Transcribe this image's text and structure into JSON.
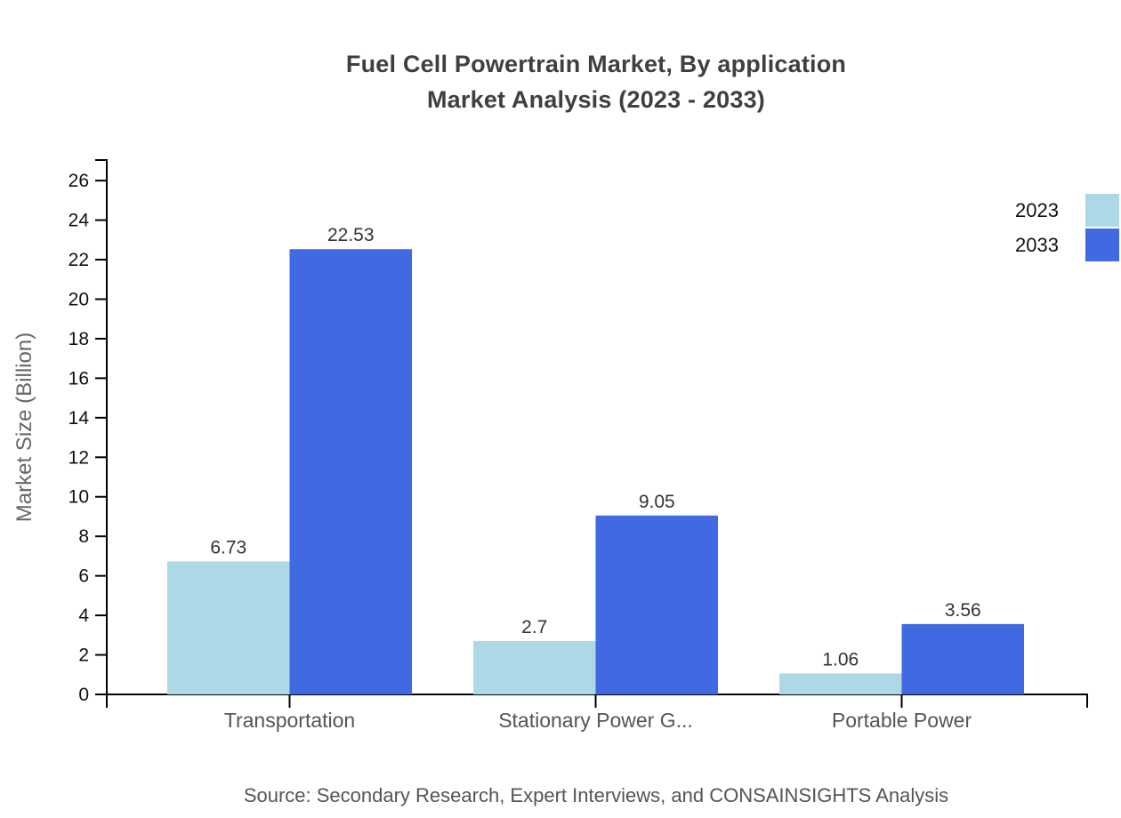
{
  "title": {
    "line1": "Fuel Cell Powertrain Market, By application",
    "line2": "Market Analysis (2023 - 2033)"
  },
  "source": "Source: Secondary Research, Expert Interviews, and CONSAINSIGHTS Analysis",
  "colors": {
    "series_2023": "#ADD8E6",
    "series_2033": "#4169E1",
    "axis": "#000000",
    "title_text": "#3F3F3F",
    "tick_text": "#111111",
    "category_text": "#555555",
    "value_text": "#333333",
    "axis_label_text": "#666666",
    "source_text": "#555555",
    "background": "#FFFFFF"
  },
  "chart_data": {
    "type": "bar",
    "categories": [
      "Transportation",
      "Stationary Power G...",
      "Portable Power"
    ],
    "series": [
      {
        "name": "2023",
        "color": "#ADD8E6",
        "values": [
          6.73,
          2.7,
          1.06
        ]
      },
      {
        "name": "2033",
        "color": "#4169E1",
        "values": [
          22.53,
          9.05,
          3.56
        ]
      }
    ],
    "value_labels": {
      "2023": [
        "6.73",
        "2.7",
        "1.06"
      ],
      "2033": [
        "22.53",
        "9.05",
        "3.56"
      ]
    },
    "title": "Fuel Cell Powertrain Market, By application Market Analysis (2023 - 2033)",
    "xlabel": "",
    "ylabel": "Market Size (Billion)",
    "ylim": [
      0,
      27.04
    ],
    "yticks": [
      0,
      2,
      4,
      6,
      8,
      10,
      12,
      14,
      16,
      18,
      20,
      22,
      24,
      26
    ],
    "grid": false,
    "legend_position": "top-right"
  }
}
